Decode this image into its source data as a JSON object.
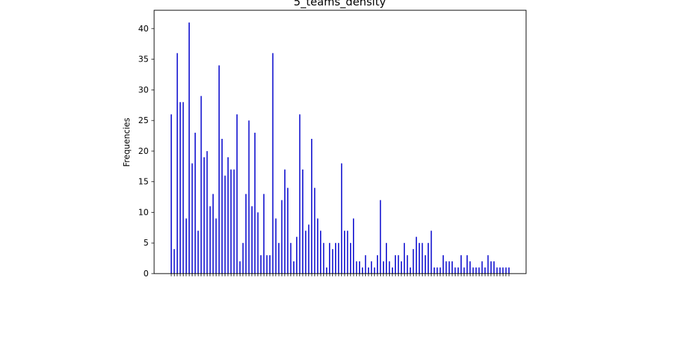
{
  "chart_data": {
    "type": "bar",
    "title": "5_teams_density",
    "xlabel": "",
    "ylabel": "Frequencies",
    "ylim": [
      0,
      43
    ],
    "yticks": [
      0,
      5,
      10,
      15,
      20,
      25,
      30,
      35,
      40
    ],
    "grid": false,
    "bar_color": "#0000cc",
    "values": [
      26,
      4,
      36,
      28,
      28,
      9,
      41,
      18,
      23,
      7,
      29,
      19,
      20,
      11,
      13,
      9,
      34,
      22,
      16,
      19,
      17,
      17,
      26,
      2,
      5,
      13,
      25,
      11,
      23,
      10,
      3,
      13,
      3,
      3,
      36,
      9,
      5,
      12,
      17,
      14,
      5,
      2,
      6,
      26,
      17,
      7,
      8,
      22,
      14,
      9,
      7,
      5,
      1,
      5,
      4,
      5,
      5,
      18,
      7,
      7,
      5,
      9,
      2,
      2,
      1,
      3,
      1,
      2,
      1,
      3,
      12,
      2,
      5,
      2,
      1,
      3,
      3,
      2,
      5,
      3,
      1,
      4,
      6,
      5,
      5,
      3,
      5,
      7,
      1,
      1,
      1,
      3,
      2,
      2,
      2,
      1,
      1,
      3,
      1,
      3,
      2,
      1,
      1,
      1,
      2,
      1,
      3,
      2,
      2,
      1,
      1,
      1,
      1,
      1
    ]
  }
}
